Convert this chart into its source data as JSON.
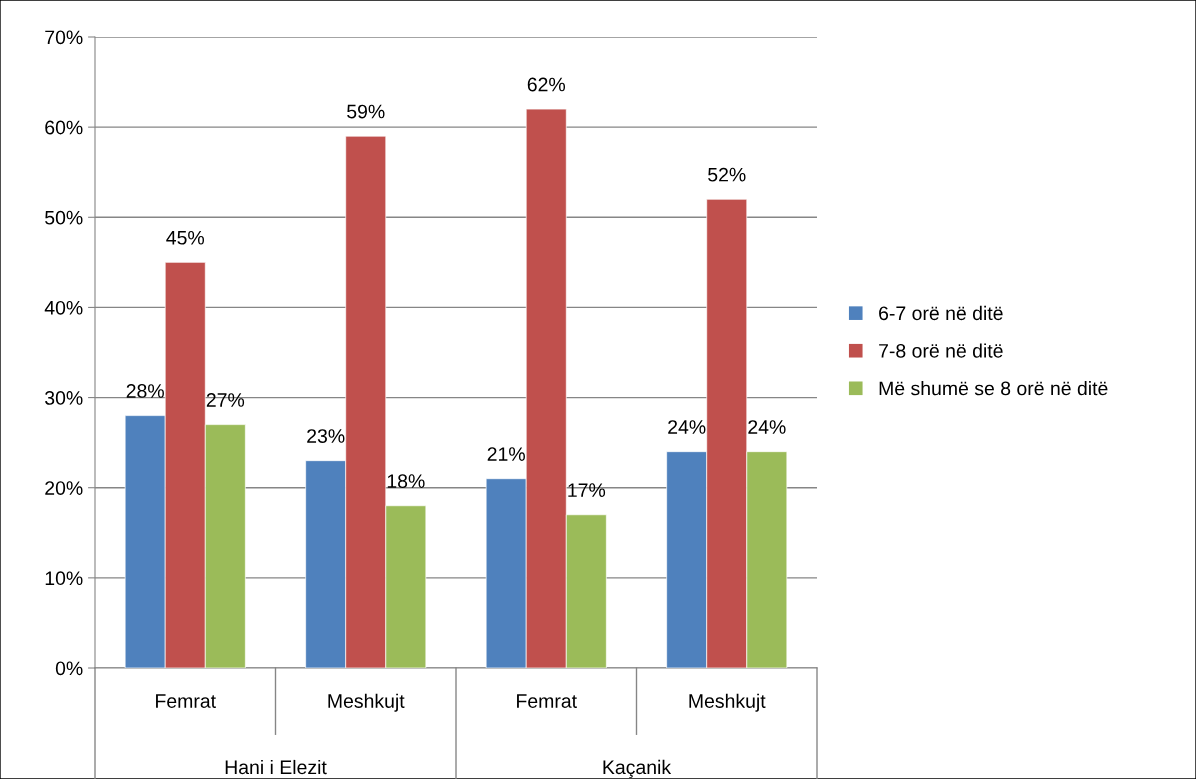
{
  "chart_data": {
    "type": "bar",
    "categories": [
      "Femrat",
      "Meshkujt",
      "Femrat",
      "Meshkujt"
    ],
    "series": [
      {
        "name": "6-7 orë në ditë",
        "color": "#4f81bd",
        "values": [
          28,
          23,
          21,
          24
        ],
        "value_labels": [
          "28%",
          "23%",
          "21%",
          "24%"
        ]
      },
      {
        "name": "7-8 orë në ditë",
        "color": "#c0504d",
        "values": [
          45,
          59,
          62,
          52
        ],
        "value_labels": [
          "45%",
          "59%",
          "62%",
          "52%"
        ]
      },
      {
        "name": "Më shumë se 8 orë në ditë",
        "color": "#9bbb59",
        "values": [
          27,
          18,
          17,
          24
        ],
        "value_labels": [
          "27%",
          "18%",
          "17%",
          "24%"
        ]
      }
    ],
    "annotations": [
      "Hani i Elezit",
      "Kaçanik"
    ],
    "ylim": [
      0,
      70
    ],
    "yticks": [
      {
        "value": 0,
        "label": "0%"
      },
      {
        "value": 10,
        "label": "10%"
      },
      {
        "value": 20,
        "label": "20%"
      },
      {
        "value": 30,
        "label": "30%"
      },
      {
        "value": 40,
        "label": "40%"
      },
      {
        "value": 50,
        "label": "50%"
      },
      {
        "value": 60,
        "label": "60%"
      },
      {
        "value": 70,
        "label": "70%"
      }
    ],
    "grid": "y",
    "legend": "right"
  }
}
